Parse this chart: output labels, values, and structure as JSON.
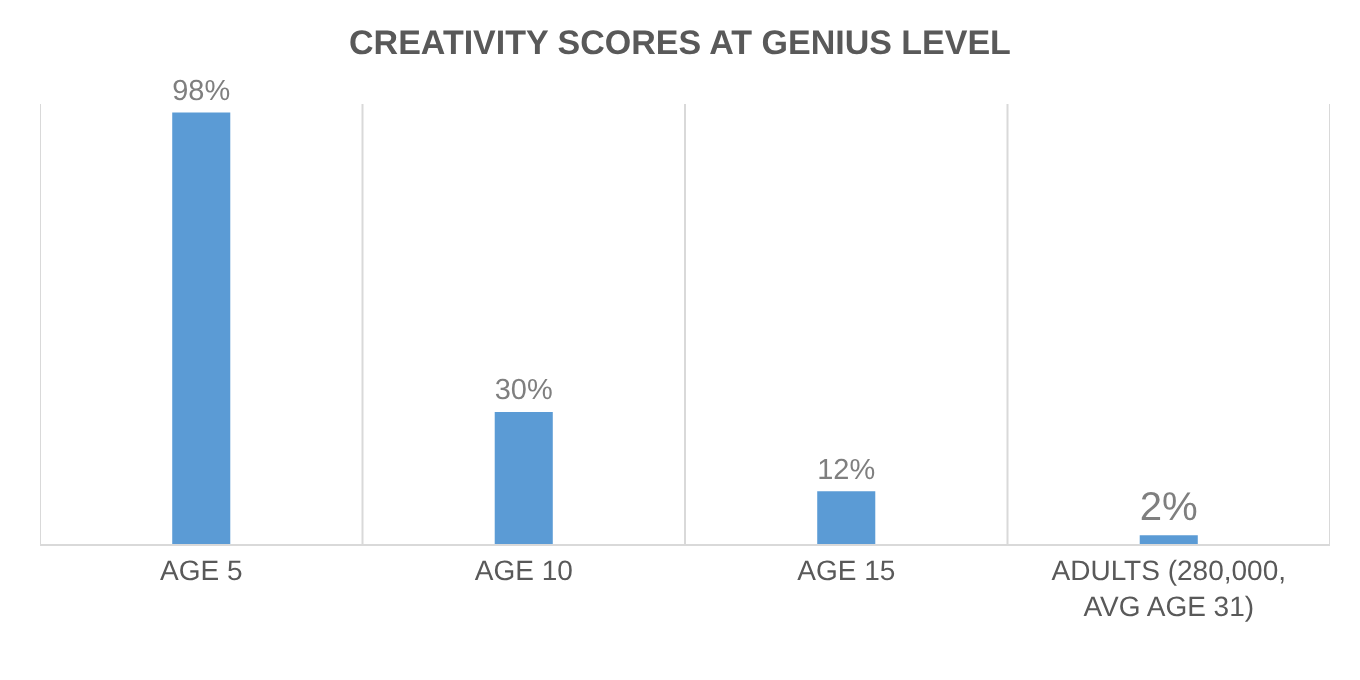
{
  "chart_data": {
    "type": "bar",
    "title": "CREATIVITY SCORES AT GENIUS LEVEL",
    "categories": [
      "AGE 5",
      "AGE 10",
      "AGE 15",
      "ADULTS (280,000, AVG AGE 31)"
    ],
    "values": [
      98,
      30,
      12,
      2
    ],
    "value_labels": [
      "98%",
      "30%",
      "12%",
      "2%"
    ],
    "color": "#5b9bd5",
    "grid": "x"
  }
}
